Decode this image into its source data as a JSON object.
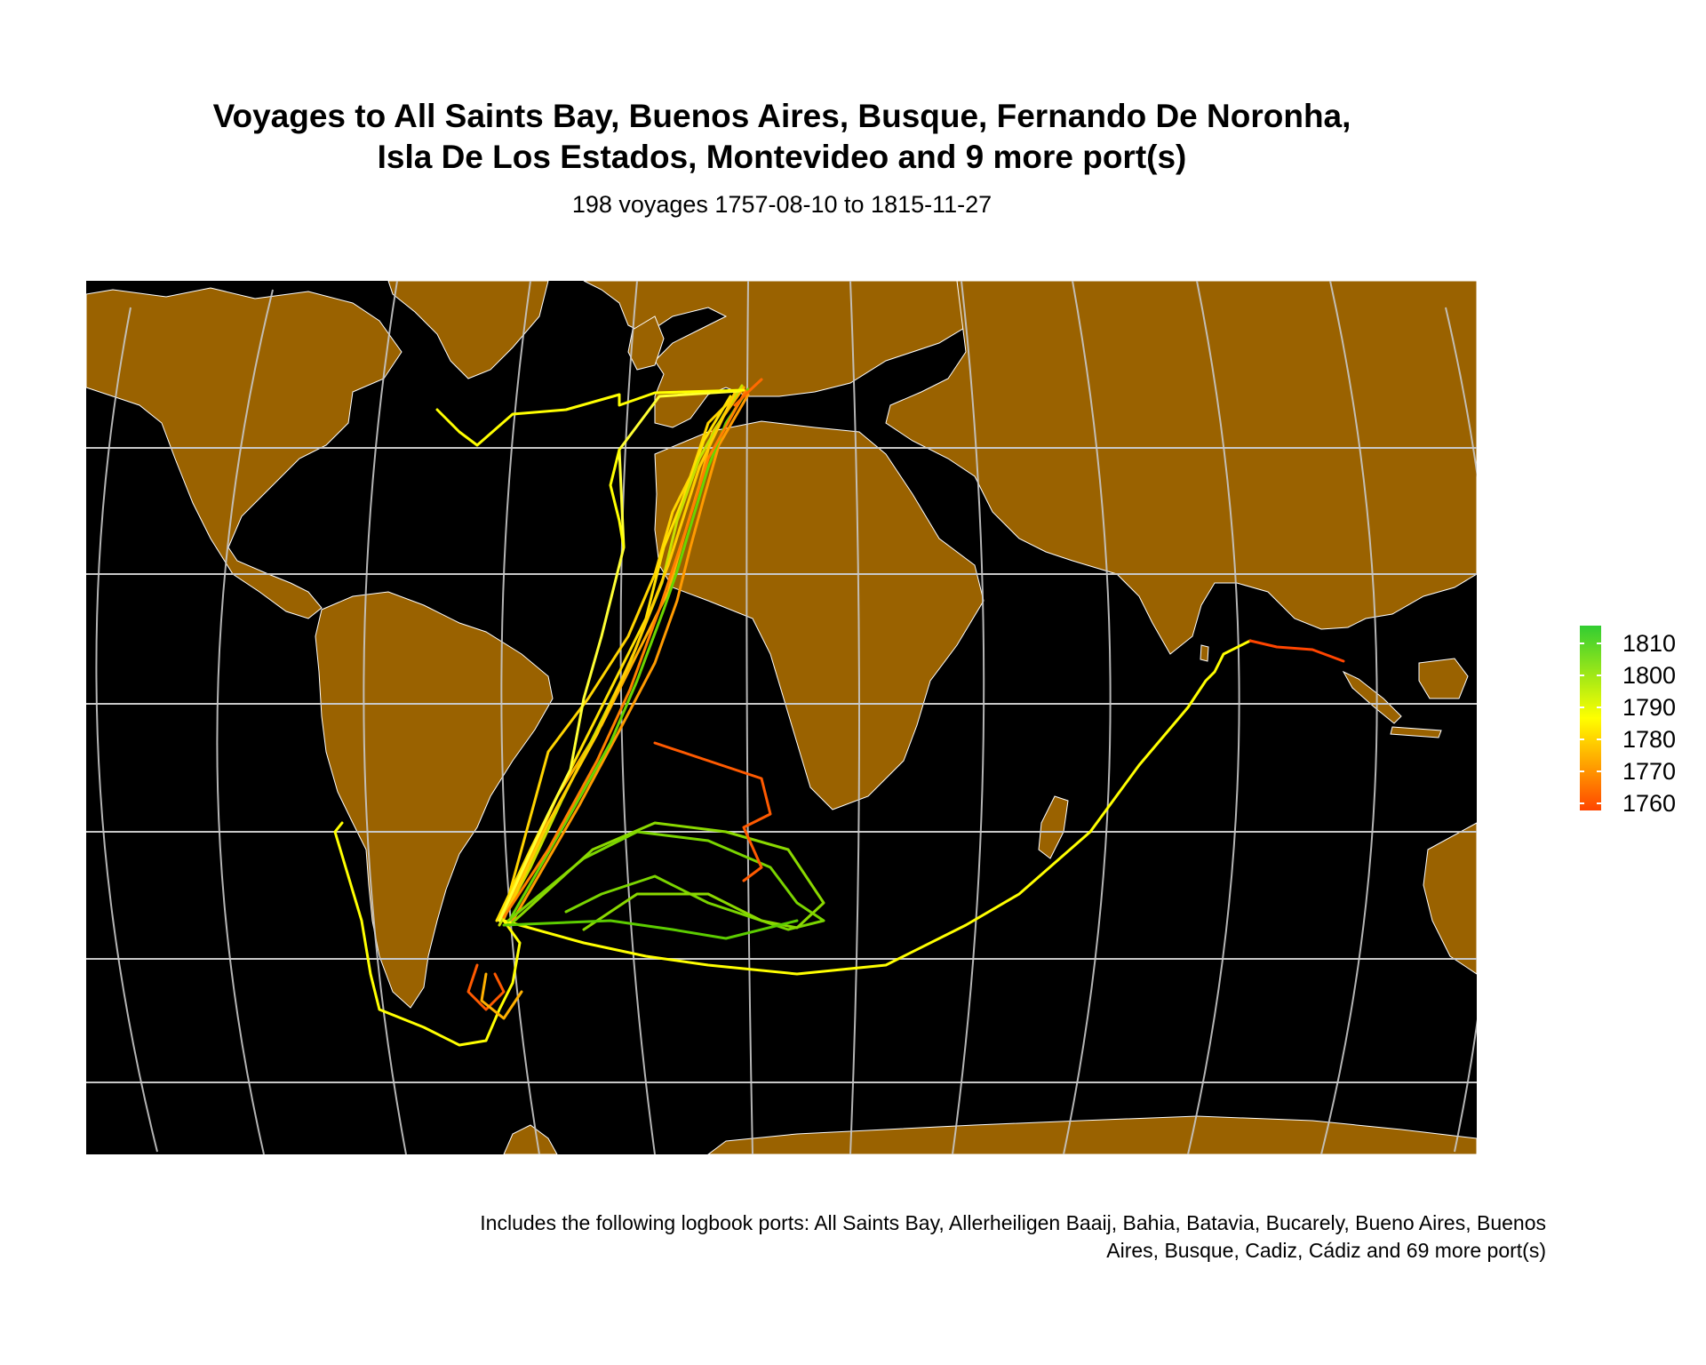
{
  "title": "Voyages to All Saints Bay, Buenos Aires, Busque, Fernando De Noronha, Isla De Los Estados, Montevideo and 9 more port(s)",
  "title_line1": "Voyages to All Saints Bay, Buenos Aires, Busque, Fernando De Noronha,",
  "title_line2": "Isla De Los Estados, Montevideo and 9 more port(s)",
  "subtitle": "198 voyages 1757-08-10 to 1815-11-27",
  "caption_line1": "Includes the following logbook ports: All Saints Bay, Allerheiligen Baaij, Bahia, Batavia, Bucarely, Bueno Aires, Buenos",
  "caption_line2": "Aires, Busque, Cadiz, Cádiz and 69 more port(s)",
  "colors": {
    "ocean": "#000000",
    "land": "#9a6200",
    "borders": "#ffffff",
    "graticule": "#c8c8c8",
    "graticule_meridians": "#d9a451",
    "year_low": "#ff4500",
    "year_mid": "#ffff00",
    "year_high": "#32cd32"
  },
  "legend": {
    "variable": "year",
    "ticks": [
      "1810",
      "1800",
      "1790",
      "1780",
      "1770",
      "1760"
    ]
  }
}
